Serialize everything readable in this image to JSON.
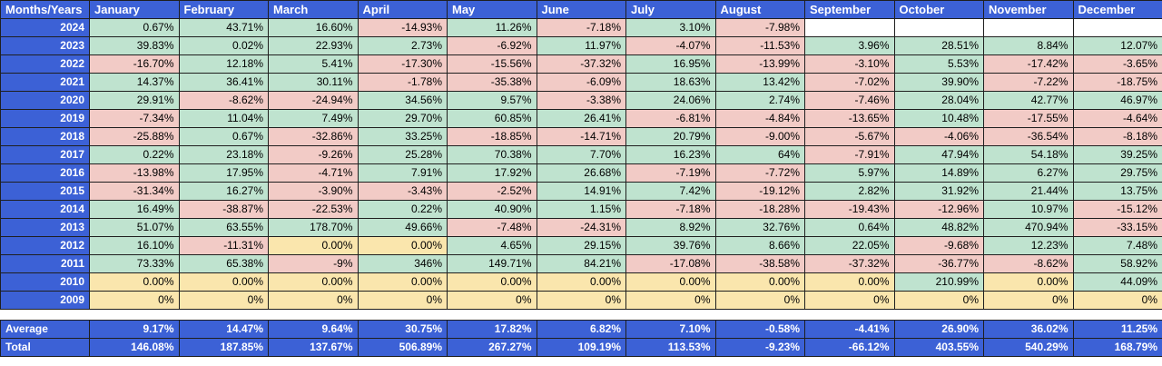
{
  "header": {
    "corner": "Months/Years",
    "months": [
      "January",
      "February",
      "March",
      "April",
      "May",
      "June",
      "July",
      "August",
      "September",
      "October",
      "November",
      "December"
    ]
  },
  "rows": [
    {
      "year": "2024",
      "values": [
        "0.67%",
        "43.71%",
        "16.60%",
        "-14.93%",
        "11.26%",
        "-7.18%",
        "3.10%",
        "-7.98%",
        "",
        "",
        "",
        ""
      ]
    },
    {
      "year": "2023",
      "values": [
        "39.83%",
        "0.02%",
        "22.93%",
        "2.73%",
        "-6.92%",
        "11.97%",
        "-4.07%",
        "-11.53%",
        "3.96%",
        "28.51%",
        "8.84%",
        "12.07%"
      ]
    },
    {
      "year": "2022",
      "values": [
        "-16.70%",
        "12.18%",
        "5.41%",
        "-17.30%",
        "-15.56%",
        "-37.32%",
        "16.95%",
        "-13.99%",
        "-3.10%",
        "5.53%",
        "-17.42%",
        "-3.65%"
      ]
    },
    {
      "year": "2021",
      "values": [
        "14.37%",
        "36.41%",
        "30.11%",
        "-1.78%",
        "-35.38%",
        "-6.09%",
        "18.63%",
        "13.42%",
        "-7.02%",
        "39.90%",
        "-7.22%",
        "-18.75%"
      ]
    },
    {
      "year": "2020",
      "values": [
        "29.91%",
        "-8.62%",
        "-24.94%",
        "34.56%",
        "9.57%",
        "-3.38%",
        "24.06%",
        "2.74%",
        "-7.46%",
        "28.04%",
        "42.77%",
        "46.97%"
      ]
    },
    {
      "year": "2019",
      "values": [
        "-7.34%",
        "11.04%",
        "7.49%",
        "29.70%",
        "60.85%",
        "26.41%",
        "-6.81%",
        "-4.84%",
        "-13.65%",
        "10.48%",
        "-17.55%",
        "-4.64%"
      ]
    },
    {
      "year": "2018",
      "values": [
        "-25.88%",
        "0.67%",
        "-32.86%",
        "33.25%",
        "-18.85%",
        "-14.71%",
        "20.79%",
        "-9.00%",
        "-5.67%",
        "-4.06%",
        "-36.54%",
        "-8.18%"
      ]
    },
    {
      "year": "2017",
      "values": [
        "0.22%",
        "23.18%",
        "-9.26%",
        "25.28%",
        "70.38%",
        "7.70%",
        "16.23%",
        "64%",
        "-7.91%",
        "47.94%",
        "54.18%",
        "39.25%"
      ]
    },
    {
      "year": "2016",
      "values": [
        "-13.98%",
        "17.95%",
        "-4.71%",
        "7.91%",
        "17.92%",
        "26.68%",
        "-7.19%",
        "-7.72%",
        "5.97%",
        "14.89%",
        "6.27%",
        "29.75%"
      ]
    },
    {
      "year": "2015",
      "values": [
        "-31.34%",
        "16.27%",
        "-3.90%",
        "-3.43%",
        "-2.52%",
        "14.91%",
        "7.42%",
        "-19.12%",
        "2.82%",
        "31.92%",
        "21.44%",
        "13.75%"
      ]
    },
    {
      "year": "2014",
      "values": [
        "16.49%",
        "-38.87%",
        "-22.53%",
        "0.22%",
        "40.90%",
        "1.15%",
        "-7.18%",
        "-18.28%",
        "-19.43%",
        "-12.96%",
        "10.97%",
        "-15.12%"
      ]
    },
    {
      "year": "2013",
      "values": [
        "51.07%",
        "63.55%",
        "178.70%",
        "49.66%",
        "-7.48%",
        "-24.31%",
        "8.92%",
        "32.76%",
        "0.64%",
        "48.82%",
        "470.94%",
        "-33.15%"
      ]
    },
    {
      "year": "2012",
      "values": [
        "16.10%",
        "-11.31%",
        "0.00%",
        "0.00%",
        "4.65%",
        "29.15%",
        "39.76%",
        "8.66%",
        "22.05%",
        "-9.68%",
        "12.23%",
        "7.48%"
      ]
    },
    {
      "year": "2011",
      "values": [
        "73.33%",
        "65.38%",
        "-9%",
        "346%",
        "149.71%",
        "84.21%",
        "-17.08%",
        "-38.58%",
        "-37.32%",
        "-36.77%",
        "-8.62%",
        "58.92%"
      ]
    },
    {
      "year": "2010",
      "values": [
        "0.00%",
        "0.00%",
        "0.00%",
        "0.00%",
        "0.00%",
        "0.00%",
        "0.00%",
        "0.00%",
        "0.00%",
        "210.99%",
        "0.00%",
        "44.09%"
      ]
    },
    {
      "year": "2009",
      "values": [
        "0%",
        "0%",
        "0%",
        "0%",
        "0%",
        "0%",
        "0%",
        "0%",
        "0%",
        "0%",
        "0%",
        "0%"
      ]
    }
  ],
  "summary": [
    {
      "label": "Average",
      "values": [
        "9.17%",
        "14.47%",
        "9.64%",
        "30.75%",
        "17.82%",
        "6.82%",
        "7.10%",
        "-0.58%",
        "-4.41%",
        "26.90%",
        "36.02%",
        "11.25%"
      ]
    },
    {
      "label": "Total",
      "values": [
        "146.08%",
        "187.85%",
        "137.67%",
        "506.89%",
        "267.27%",
        "109.19%",
        "113.53%",
        "-9.23%",
        "-66.12%",
        "403.55%",
        "540.29%",
        "168.79%"
      ]
    }
  ],
  "colors": {
    "header_blue": "#3c61d6",
    "positive_green": "#bfe3cf",
    "negative_red": "#f2cbc6",
    "zero_yellow": "#fae6ad"
  }
}
